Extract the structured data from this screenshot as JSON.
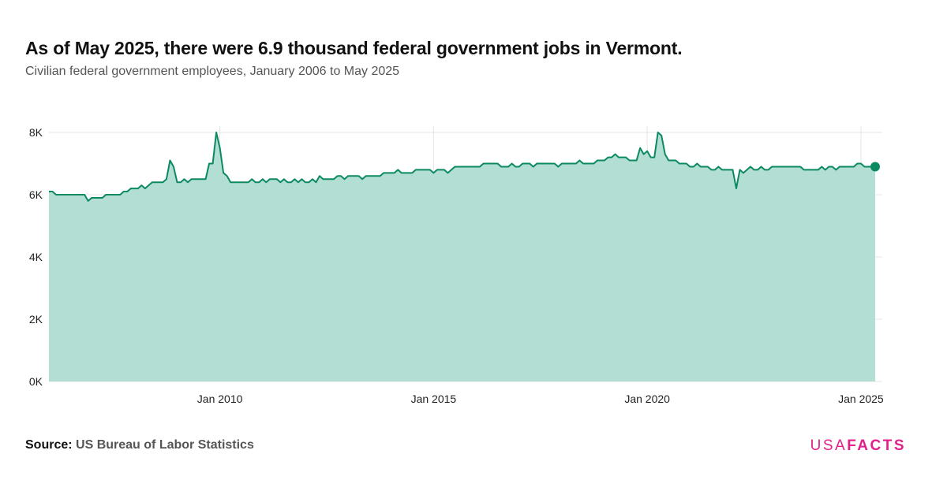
{
  "title": "As of May 2025, there were 6.9 thousand federal government jobs in Vermont.",
  "subtitle": "Civilian federal government employees, January 2006 to May 2025",
  "source": {
    "label": "Source:",
    "text": "US Bureau of Labor Statistics"
  },
  "logo": {
    "part1": "USA",
    "part2": "FACTS"
  },
  "colors": {
    "line": "#0b8a62",
    "area": "#b3ded4",
    "grid": "#e6e6e6",
    "logo": "#e0218a"
  },
  "chart_data": {
    "type": "area",
    "x_unit": "month",
    "x_start": "2006-01",
    "x_end": "2025-05",
    "y_unit": "employees",
    "ylim": [
      0,
      8000
    ],
    "y_ticks": [
      0,
      2000,
      4000,
      6000,
      8000
    ],
    "y_tick_labels": [
      "0K",
      "2K",
      "4K",
      "6K",
      "8K"
    ],
    "x_ticks": [
      "2010-01",
      "2015-01",
      "2020-01",
      "2025-01"
    ],
    "x_tick_labels": [
      "Jan 2010",
      "Jan 2015",
      "Jan 2020",
      "Jan 2025"
    ],
    "grid": true,
    "legend": "none",
    "series": [
      {
        "values": [
          6100,
          6100,
          6000,
          6000,
          6000,
          6000,
          6000,
          6000,
          6000,
          6000,
          6000,
          5800,
          5900,
          5900,
          5900,
          5900,
          6000,
          6000,
          6000,
          6000,
          6000,
          6100,
          6100,
          6200,
          6200,
          6200,
          6300,
          6200,
          6300,
          6400,
          6400,
          6400,
          6400,
          6500,
          7100,
          6900,
          6400,
          6400,
          6500,
          6400,
          6500,
          6500,
          6500,
          6500,
          6500,
          7000,
          7000,
          8000,
          7500,
          6700,
          6600,
          6400,
          6400,
          6400,
          6400,
          6400,
          6400,
          6500,
          6400,
          6400,
          6500,
          6400,
          6500,
          6500,
          6500,
          6400,
          6500,
          6400,
          6400,
          6500,
          6400,
          6500,
          6400,
          6400,
          6500,
          6400,
          6600,
          6500,
          6500,
          6500,
          6500,
          6600,
          6600,
          6500,
          6600,
          6600,
          6600,
          6600,
          6500,
          6600,
          6600,
          6600,
          6600,
          6600,
          6700,
          6700,
          6700,
          6700,
          6800,
          6700,
          6700,
          6700,
          6700,
          6800,
          6800,
          6800,
          6800,
          6800,
          6700,
          6800,
          6800,
          6800,
          6700,
          6800,
          6900,
          6900,
          6900,
          6900,
          6900,
          6900,
          6900,
          6900,
          7000,
          7000,
          7000,
          7000,
          7000,
          6900,
          6900,
          6900,
          7000,
          6900,
          6900,
          7000,
          7000,
          7000,
          6900,
          7000,
          7000,
          7000,
          7000,
          7000,
          7000,
          6900,
          7000,
          7000,
          7000,
          7000,
          7000,
          7100,
          7000,
          7000,
          7000,
          7000,
          7100,
          7100,
          7100,
          7200,
          7200,
          7300,
          7200,
          7200,
          7200,
          7100,
          7100,
          7100,
          7500,
          7300,
          7400,
          7200,
          7200,
          8000,
          7900,
          7300,
          7100,
          7100,
          7100,
          7000,
          7000,
          7000,
          6900,
          6900,
          7000,
          6900,
          6900,
          6900,
          6800,
          6800,
          6900,
          6800,
          6800,
          6800,
          6800,
          6200,
          6800,
          6700,
          6800,
          6900,
          6800,
          6800,
          6900,
          6800,
          6800,
          6900,
          6900,
          6900,
          6900,
          6900,
          6900,
          6900,
          6900,
          6900,
          6800,
          6800,
          6800,
          6800,
          6800,
          6900,
          6800,
          6900,
          6900,
          6800,
          6900,
          6900,
          6900,
          6900,
          6900,
          7000,
          7000,
          6900,
          6900,
          6900,
          6900
        ]
      }
    ]
  }
}
